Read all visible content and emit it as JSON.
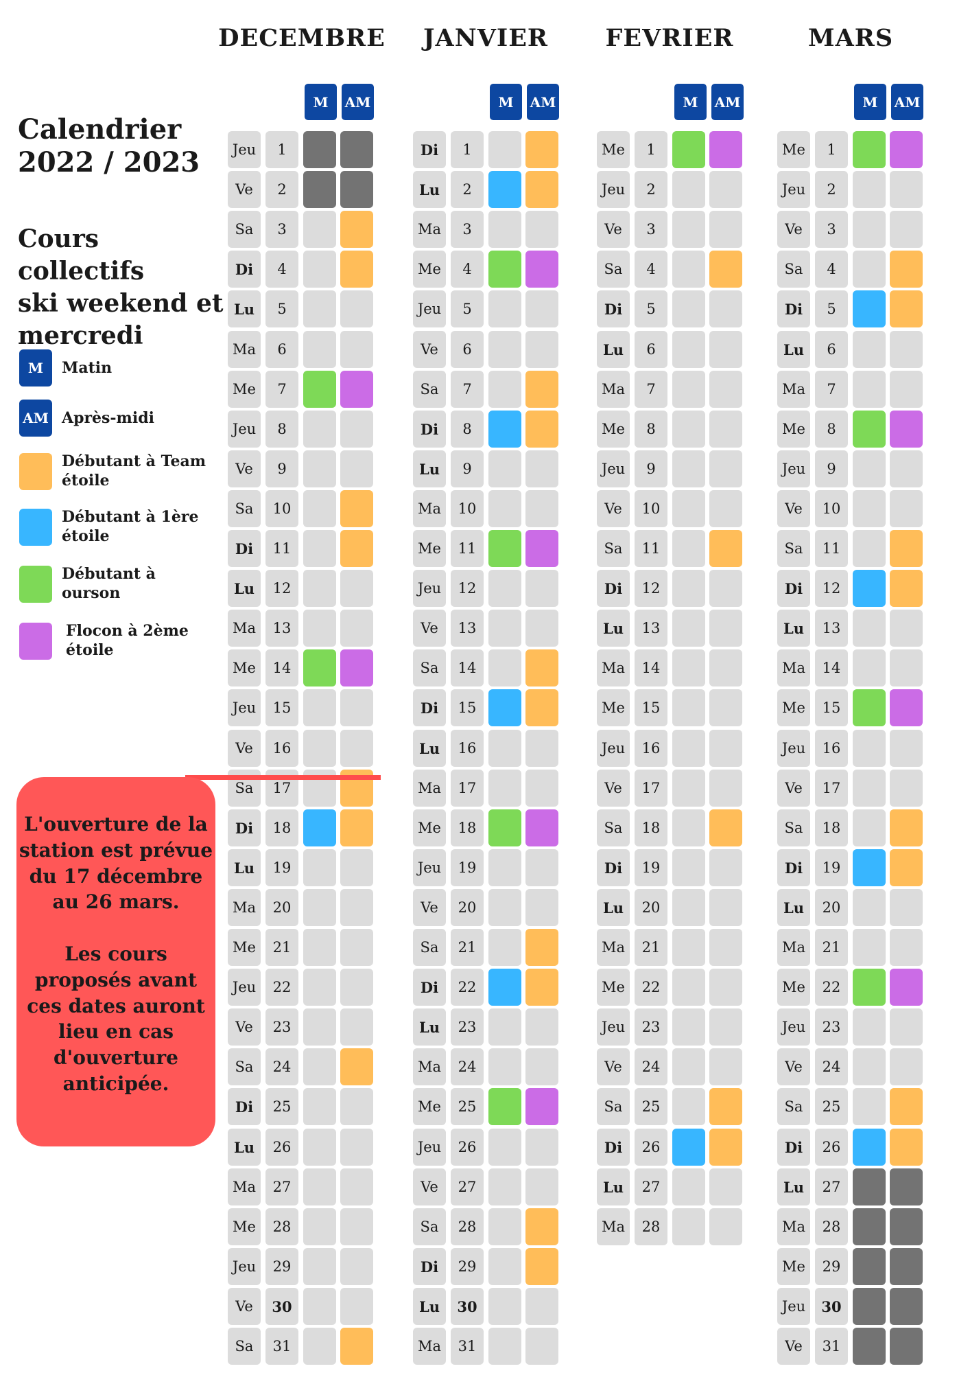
{
  "title_lines": [
    "Calendrier",
    "2022 / 2023"
  ],
  "subtitle_lines": [
    "Cours collectifs",
    "ski weekend et",
    "mercredi"
  ],
  "legend": [
    {
      "swatch_text": "M",
      "label": "Matin",
      "color": "#0d47a1"
    },
    {
      "swatch_text": "AM",
      "label": "Après-midi",
      "color": "#0d47a1"
    },
    {
      "swatch_text": "",
      "label": "Débutant à Team\nétoile",
      "color": "#ffbd59"
    },
    {
      "swatch_text": "",
      "label": "Débutant à 1ère\nétoile",
      "color": "#38b6ff"
    },
    {
      "swatch_text": "",
      "label": "Débutant à\nourson",
      "color": "#7ed957"
    },
    {
      "swatch_text": "",
      "label": "Flocon à 2ème\nétoile",
      "color": "#cb6ce6"
    }
  ],
  "colors": {
    "O": "#ffbd59",
    "B": "#38b6ff",
    "G": "#7ed957",
    "P": "#cb6ce6",
    "D": "#737373",
    "E": "#dcdcdc"
  },
  "column_headers": {
    "morning": "M",
    "afternoon": "AM"
  },
  "months": [
    {
      "name": "DECEMBRE",
      "days": [
        {
          "d": "Jeu",
          "n": "1",
          "m": "D",
          "a": "D"
        },
        {
          "d": "Ve",
          "n": "2",
          "m": "D",
          "a": "D"
        },
        {
          "d": "Sa",
          "n": "3",
          "m": "E",
          "a": "O"
        },
        {
          "d": "Di",
          "n": "4",
          "m": "E",
          "a": "O",
          "bd": true
        },
        {
          "d": "Lu",
          "n": "5",
          "m": "E",
          "a": "E",
          "bd": true
        },
        {
          "d": "Ma",
          "n": "6",
          "m": "E",
          "a": "E"
        },
        {
          "d": "Me",
          "n": "7",
          "m": "G",
          "a": "P"
        },
        {
          "d": "Jeu",
          "n": "8",
          "m": "E",
          "a": "E"
        },
        {
          "d": "Ve",
          "n": "9",
          "m": "E",
          "a": "E"
        },
        {
          "d": "Sa",
          "n": "10",
          "m": "E",
          "a": "O"
        },
        {
          "d": "Di",
          "n": "11",
          "m": "E",
          "a": "O",
          "bd": true
        },
        {
          "d": "Lu",
          "n": "12",
          "m": "E",
          "a": "E",
          "bd": true
        },
        {
          "d": "Ma",
          "n": "13",
          "m": "E",
          "a": "E"
        },
        {
          "d": "Me",
          "n": "14",
          "m": "G",
          "a": "P"
        },
        {
          "d": "Jeu",
          "n": "15",
          "m": "E",
          "a": "E"
        },
        {
          "d": "Ve",
          "n": "16",
          "m": "E",
          "a": "E"
        },
        {
          "d": "Sa",
          "n": "17",
          "m": "E",
          "a": "O"
        },
        {
          "d": "Di",
          "n": "18",
          "m": "B",
          "a": "O",
          "bd": true
        },
        {
          "d": "Lu",
          "n": "19",
          "m": "E",
          "a": "E",
          "bd": true
        },
        {
          "d": "Ma",
          "n": "20",
          "m": "E",
          "a": "E"
        },
        {
          "d": "Me",
          "n": "21",
          "m": "E",
          "a": "E"
        },
        {
          "d": "Jeu",
          "n": "22",
          "m": "E",
          "a": "E"
        },
        {
          "d": "Ve",
          "n": "23",
          "m": "E",
          "a": "E"
        },
        {
          "d": "Sa",
          "n": "24",
          "m": "E",
          "a": "O"
        },
        {
          "d": "Di",
          "n": "25",
          "m": "E",
          "a": "E",
          "bd": true
        },
        {
          "d": "Lu",
          "n": "26",
          "m": "E",
          "a": "E",
          "bd": true
        },
        {
          "d": "Ma",
          "n": "27",
          "m": "E",
          "a": "E"
        },
        {
          "d": "Me",
          "n": "28",
          "m": "E",
          "a": "E"
        },
        {
          "d": "Jeu",
          "n": "29",
          "m": "E",
          "a": "E"
        },
        {
          "d": "Ve",
          "n": "30",
          "m": "E",
          "a": "E",
          "bn": true
        },
        {
          "d": "Sa",
          "n": "31",
          "m": "E",
          "a": "O"
        }
      ]
    },
    {
      "name": "JANVIER",
      "days": [
        {
          "d": "Di",
          "n": "1",
          "m": "E",
          "a": "O",
          "bd": true
        },
        {
          "d": "Lu",
          "n": "2",
          "m": "B",
          "a": "O",
          "bd": true
        },
        {
          "d": "Ma",
          "n": "3",
          "m": "E",
          "a": "E"
        },
        {
          "d": "Me",
          "n": "4",
          "m": "G",
          "a": "P"
        },
        {
          "d": "Jeu",
          "n": "5",
          "m": "E",
          "a": "E"
        },
        {
          "d": "Ve",
          "n": "6",
          "m": "E",
          "a": "E"
        },
        {
          "d": "Sa",
          "n": "7",
          "m": "E",
          "a": "O"
        },
        {
          "d": "Di",
          "n": "8",
          "m": "B",
          "a": "O",
          "bd": true
        },
        {
          "d": "Lu",
          "n": "9",
          "m": "E",
          "a": "E",
          "bd": true
        },
        {
          "d": "Ma",
          "n": "10",
          "m": "E",
          "a": "E"
        },
        {
          "d": "Me",
          "n": "11",
          "m": "G",
          "a": "P"
        },
        {
          "d": "Jeu",
          "n": "12",
          "m": "E",
          "a": "E"
        },
        {
          "d": "Ve",
          "n": "13",
          "m": "E",
          "a": "E"
        },
        {
          "d": "Sa",
          "n": "14",
          "m": "E",
          "a": "O"
        },
        {
          "d": "Di",
          "n": "15",
          "m": "B",
          "a": "O",
          "bd": true
        },
        {
          "d": "Lu",
          "n": "16",
          "m": "E",
          "a": "E",
          "bd": true
        },
        {
          "d": "Ma",
          "n": "17",
          "m": "E",
          "a": "E"
        },
        {
          "d": "Me",
          "n": "18",
          "m": "G",
          "a": "P"
        },
        {
          "d": "Jeu",
          "n": "19",
          "m": "E",
          "a": "E"
        },
        {
          "d": "Ve",
          "n": "20",
          "m": "E",
          "a": "E"
        },
        {
          "d": "Sa",
          "n": "21",
          "m": "E",
          "a": "O"
        },
        {
          "d": "Di",
          "n": "22",
          "m": "B",
          "a": "O",
          "bd": true
        },
        {
          "d": "Lu",
          "n": "23",
          "m": "E",
          "a": "E",
          "bd": true
        },
        {
          "d": "Ma",
          "n": "24",
          "m": "E",
          "a": "E"
        },
        {
          "d": "Me",
          "n": "25",
          "m": "G",
          "a": "P"
        },
        {
          "d": "Jeu",
          "n": "26",
          "m": "E",
          "a": "E"
        },
        {
          "d": "Ve",
          "n": "27",
          "m": "E",
          "a": "E"
        },
        {
          "d": "Sa",
          "n": "28",
          "m": "E",
          "a": "O"
        },
        {
          "d": "Di",
          "n": "29",
          "m": "E",
          "a": "O",
          "bd": true
        },
        {
          "d": "Lu",
          "n": "30",
          "m": "E",
          "a": "E",
          "bd": true,
          "bn": true
        },
        {
          "d": "Ma",
          "n": "31",
          "m": "E",
          "a": "E"
        }
      ]
    },
    {
      "name": "FEVRIER",
      "days": [
        {
          "d": "Me",
          "n": "1",
          "m": "G",
          "a": "P"
        },
        {
          "d": "Jeu",
          "n": "2",
          "m": "E",
          "a": "E"
        },
        {
          "d": "Ve",
          "n": "3",
          "m": "E",
          "a": "E"
        },
        {
          "d": "Sa",
          "n": "4",
          "m": "E",
          "a": "O"
        },
        {
          "d": "Di",
          "n": "5",
          "m": "E",
          "a": "E",
          "bd": true
        },
        {
          "d": "Lu",
          "n": "6",
          "m": "E",
          "a": "E",
          "bd": true
        },
        {
          "d": "Ma",
          "n": "7",
          "m": "E",
          "a": "E"
        },
        {
          "d": "Me",
          "n": "8",
          "m": "E",
          "a": "E"
        },
        {
          "d": "Jeu",
          "n": "9",
          "m": "E",
          "a": "E"
        },
        {
          "d": "Ve",
          "n": "10",
          "m": "E",
          "a": "E"
        },
        {
          "d": "Sa",
          "n": "11",
          "m": "E",
          "a": "O"
        },
        {
          "d": "Di",
          "n": "12",
          "m": "E",
          "a": "E",
          "bd": true
        },
        {
          "d": "Lu",
          "n": "13",
          "m": "E",
          "a": "E",
          "bd": true
        },
        {
          "d": "Ma",
          "n": "14",
          "m": "E",
          "a": "E"
        },
        {
          "d": "Me",
          "n": "15",
          "m": "E",
          "a": "E"
        },
        {
          "d": "Jeu",
          "n": "16",
          "m": "E",
          "a": "E"
        },
        {
          "d": "Ve",
          "n": "17",
          "m": "E",
          "a": "E"
        },
        {
          "d": "Sa",
          "n": "18",
          "m": "E",
          "a": "O"
        },
        {
          "d": "Di",
          "n": "19",
          "m": "E",
          "a": "E",
          "bd": true
        },
        {
          "d": "Lu",
          "n": "20",
          "m": "E",
          "a": "E",
          "bd": true
        },
        {
          "d": "Ma",
          "n": "21",
          "m": "E",
          "a": "E"
        },
        {
          "d": "Me",
          "n": "22",
          "m": "E",
          "a": "E"
        },
        {
          "d": "Jeu",
          "n": "23",
          "m": "E",
          "a": "E"
        },
        {
          "d": "Ve",
          "n": "24",
          "m": "E",
          "a": "E"
        },
        {
          "d": "Sa",
          "n": "25",
          "m": "E",
          "a": "O"
        },
        {
          "d": "Di",
          "n": "26",
          "m": "B",
          "a": "O",
          "bd": true
        },
        {
          "d": "Lu",
          "n": "27",
          "m": "E",
          "a": "E",
          "bd": true
        },
        {
          "d": "Ma",
          "n": "28",
          "m": "E",
          "a": "E"
        }
      ]
    },
    {
      "name": "MARS",
      "days": [
        {
          "d": "Me",
          "n": "1",
          "m": "G",
          "a": "P"
        },
        {
          "d": "Jeu",
          "n": "2",
          "m": "E",
          "a": "E"
        },
        {
          "d": "Ve",
          "n": "3",
          "m": "E",
          "a": "E"
        },
        {
          "d": "Sa",
          "n": "4",
          "m": "E",
          "a": "O"
        },
        {
          "d": "Di",
          "n": "5",
          "m": "B",
          "a": "O",
          "bd": true
        },
        {
          "d": "Lu",
          "n": "6",
          "m": "E",
          "a": "E",
          "bd": true
        },
        {
          "d": "Ma",
          "n": "7",
          "m": "E",
          "a": "E"
        },
        {
          "d": "Me",
          "n": "8",
          "m": "G",
          "a": "P"
        },
        {
          "d": "Jeu",
          "n": "9",
          "m": "E",
          "a": "E"
        },
        {
          "d": "Ve",
          "n": "10",
          "m": "E",
          "a": "E"
        },
        {
          "d": "Sa",
          "n": "11",
          "m": "E",
          "a": "O"
        },
        {
          "d": "Di",
          "n": "12",
          "m": "B",
          "a": "O",
          "bd": true
        },
        {
          "d": "Lu",
          "n": "13",
          "m": "E",
          "a": "E",
          "bd": true
        },
        {
          "d": "Ma",
          "n": "14",
          "m": "E",
          "a": "E"
        },
        {
          "d": "Me",
          "n": "15",
          "m": "G",
          "a": "P"
        },
        {
          "d": "Jeu",
          "n": "16",
          "m": "E",
          "a": "E"
        },
        {
          "d": "Ve",
          "n": "17",
          "m": "E",
          "a": "E"
        },
        {
          "d": "Sa",
          "n": "18",
          "m": "E",
          "a": "O"
        },
        {
          "d": "Di",
          "n": "19",
          "m": "B",
          "a": "O",
          "bd": true
        },
        {
          "d": "Lu",
          "n": "20",
          "m": "E",
          "a": "E",
          "bd": true
        },
        {
          "d": "Ma",
          "n": "21",
          "m": "E",
          "a": "E"
        },
        {
          "d": "Me",
          "n": "22",
          "m": "G",
          "a": "P"
        },
        {
          "d": "Jeu",
          "n": "23",
          "m": "E",
          "a": "E"
        },
        {
          "d": "Ve",
          "n": "24",
          "m": "E",
          "a": "E"
        },
        {
          "d": "Sa",
          "n": "25",
          "m": "E",
          "a": "O"
        },
        {
          "d": "Di",
          "n": "26",
          "m": "B",
          "a": "O",
          "bd": true
        },
        {
          "d": "Lu",
          "n": "27",
          "m": "D",
          "a": "D",
          "bd": true
        },
        {
          "d": "Ma",
          "n": "28",
          "m": "D",
          "a": "D"
        },
        {
          "d": "Me",
          "n": "29",
          "m": "D",
          "a": "D"
        },
        {
          "d": "Jeu",
          "n": "30",
          "m": "D",
          "a": "D",
          "bn": true
        },
        {
          "d": "Ve",
          "n": "31",
          "m": "D",
          "a": "D"
        }
      ]
    }
  ],
  "note_lines": [
    "L'ouverture de la",
    "station est prévue",
    "du 17 décembre",
    "au 26 mars.",
    "",
    "Les cours",
    "proposés avant",
    "ces dates auront",
    "lieu en cas",
    "d'ouverture",
    "anticipée."
  ]
}
